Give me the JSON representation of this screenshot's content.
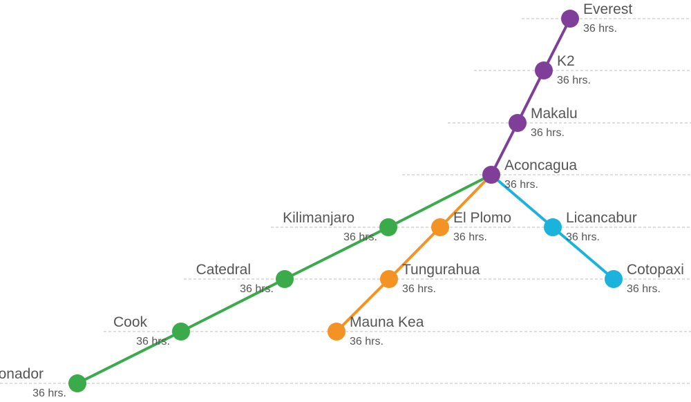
{
  "colors": {
    "main": "#7f3f98",
    "green": "#3aaa4a",
    "orange": "#f39324",
    "blue": "#1bb3dc",
    "grid": "#bdbdbd",
    "text": "#555555"
  },
  "branches": [
    {
      "id": "main",
      "color_key": "main",
      "nodes": [
        "everest",
        "k2",
        "makalu",
        "aconcagua"
      ]
    },
    {
      "id": "green",
      "color_key": "green",
      "nodes": [
        "aconcagua",
        "kilimanjaro",
        "catedral",
        "cook",
        "tronador"
      ]
    },
    {
      "id": "orange",
      "color_key": "orange",
      "nodes": [
        "aconcagua",
        "el_plomo",
        "tungurahua",
        "mauna_kea"
      ]
    },
    {
      "id": "blue",
      "color_key": "blue",
      "nodes": [
        "aconcagua",
        "licancabur",
        "cotopaxi"
      ]
    }
  ],
  "nodes": [
    {
      "id": "everest",
      "name": "Everest",
      "duration": "36 hrs.",
      "color_key": "main",
      "label_side": "right"
    },
    {
      "id": "k2",
      "name": "K2",
      "duration": "36 hrs.",
      "color_key": "main",
      "label_side": "right"
    },
    {
      "id": "makalu",
      "name": "Makalu",
      "duration": "36 hrs.",
      "color_key": "main",
      "label_side": "right"
    },
    {
      "id": "aconcagua",
      "name": "Aconcagua",
      "duration": "36 hrs.",
      "color_key": "main",
      "label_side": "right"
    },
    {
      "id": "kilimanjaro",
      "name": "Kilimanjaro",
      "duration": "36 hrs.",
      "color_key": "green",
      "label_side": "left"
    },
    {
      "id": "el_plomo",
      "name": "El Plomo",
      "duration": "36 hrs.",
      "color_key": "orange",
      "label_side": "right"
    },
    {
      "id": "licancabur",
      "name": "Licancabur",
      "duration": "36 hrs.",
      "color_key": "blue",
      "label_side": "right"
    },
    {
      "id": "catedral",
      "name": "Catedral",
      "duration": "36 hrs.",
      "color_key": "green",
      "label_side": "left"
    },
    {
      "id": "tungurahua",
      "name": "Tungurahua",
      "duration": "36 hrs.",
      "color_key": "orange",
      "label_side": "right"
    },
    {
      "id": "cotopaxi",
      "name": "Cotopaxi",
      "duration": "36 hrs.",
      "color_key": "blue",
      "label_side": "right"
    },
    {
      "id": "cook",
      "name": "Cook",
      "duration": "36 hrs.",
      "color_key": "green",
      "label_side": "left"
    },
    {
      "id": "mauna_kea",
      "name": "Mauna Kea",
      "duration": "36 hrs.",
      "color_key": "orange",
      "label_side": "right"
    },
    {
      "id": "tronador",
      "name": "Tronador",
      "duration": "36 hrs.",
      "color_key": "green",
      "label_side": "left"
    }
  ]
}
